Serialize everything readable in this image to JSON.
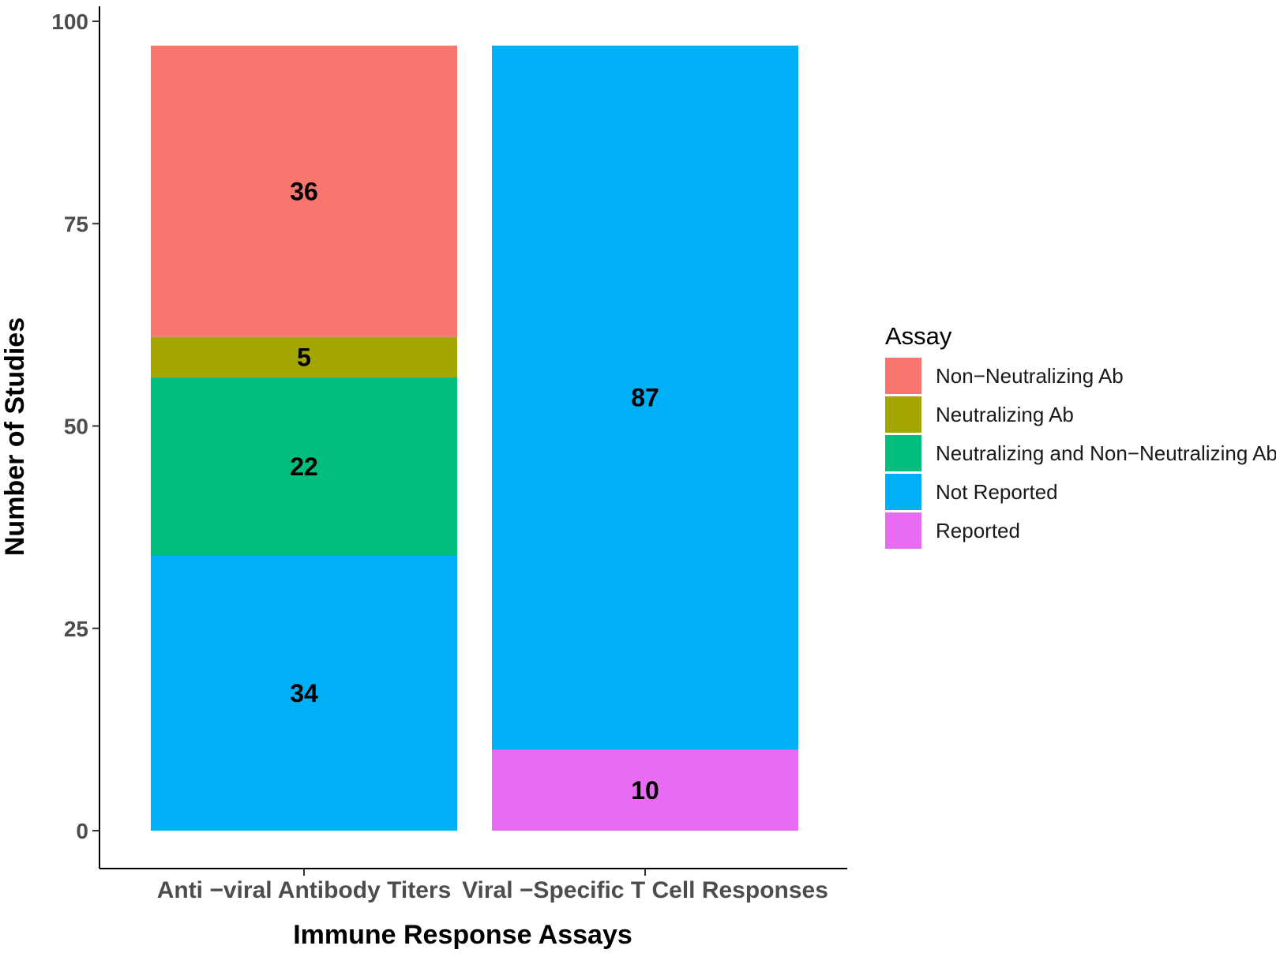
{
  "chart_data": {
    "type": "bar",
    "stacked": true,
    "title": "",
    "xlabel": "Immune Response Assays",
    "ylabel": "Number of Studies",
    "ylim": [
      0,
      100
    ],
    "yticks": [
      0,
      25,
      50,
      75,
      100
    ],
    "grid": false,
    "legend_position": "right",
    "legend_title": "Assay",
    "categories": [
      "Anti −viral Antibody Titers",
      "Viral −Specific T Cell Responses"
    ],
    "legend": [
      {
        "name": "Non−Neutralizing Ab",
        "color": "#F8766D"
      },
      {
        "name": "Neutralizing Ab",
        "color": "#A3A500"
      },
      {
        "name": "Neutralizing and Non−Neutralizing Ab",
        "color": "#00BF7D"
      },
      {
        "name": "Not Reported",
        "color": "#00B0F6"
      },
      {
        "name": "Reported",
        "color": "#E76BF3"
      }
    ],
    "stacks": [
      {
        "category": "Anti −viral Antibody Titers",
        "segments": [
          {
            "name": "Not Reported",
            "value": 34
          },
          {
            "name": "Neutralizing and Non−Neutralizing Ab",
            "value": 22
          },
          {
            "name": "Neutralizing Ab",
            "value": 5
          },
          {
            "name": "Non−Neutralizing Ab",
            "value": 36
          }
        ]
      },
      {
        "category": "Viral −Specific T Cell Responses",
        "segments": [
          {
            "name": "Reported",
            "value": 10
          },
          {
            "name": "Not Reported",
            "value": 87
          }
        ]
      }
    ]
  }
}
